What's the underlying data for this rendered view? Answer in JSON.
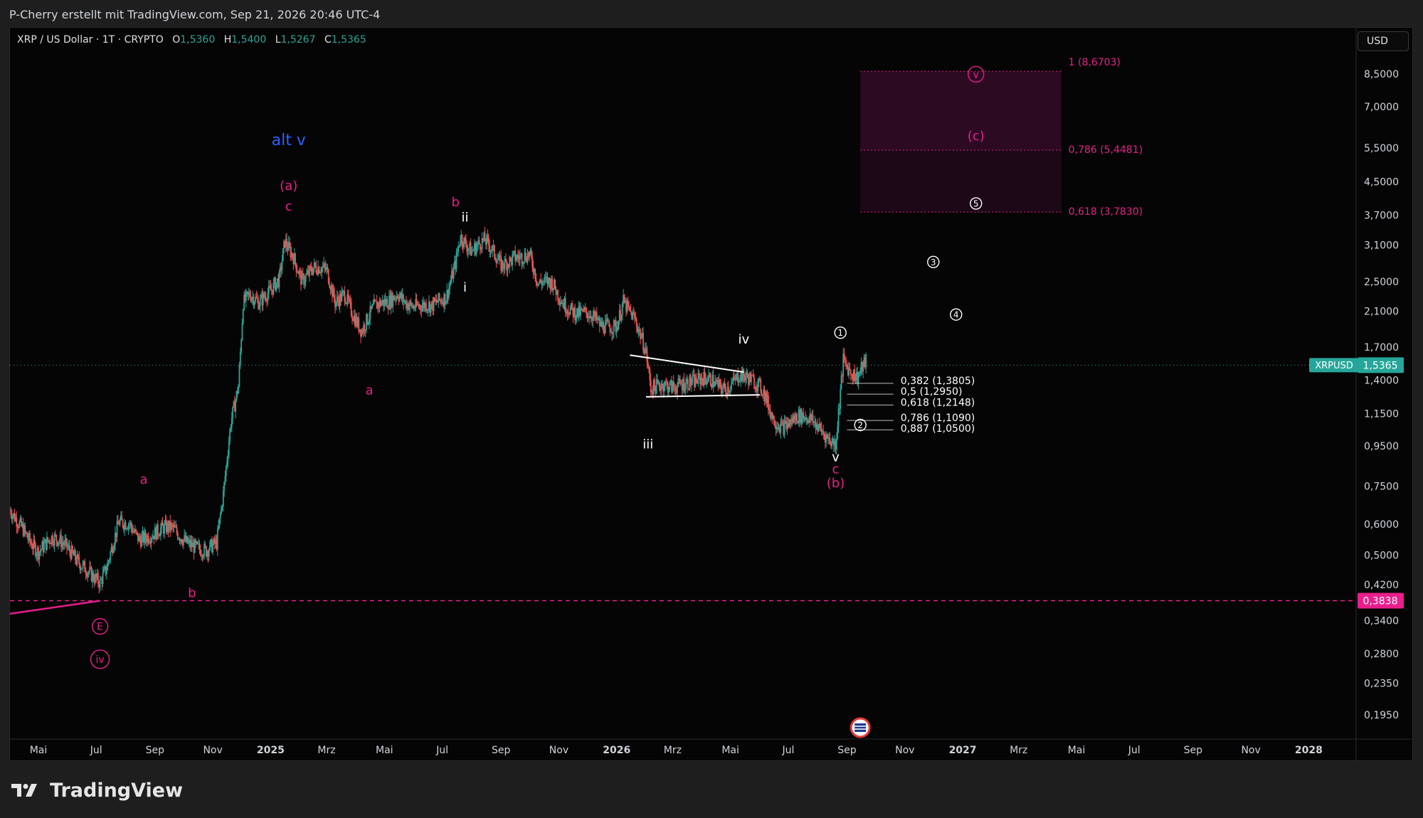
{
  "header": {
    "attribution": "P-Cherry erstellt mit TradingView.com, Sep 21, 2026 20:46 UTC-4"
  },
  "symbol": {
    "name": "XRP / US Dollar · 1T · CRYPTO",
    "o_label": "O",
    "o": "1,5360",
    "h_label": "H",
    "h": "1,5400",
    "l_label": "L",
    "l": "1,5267",
    "c_label": "C",
    "c": "1,5365"
  },
  "currency_button": "USD",
  "footer": {
    "brand": "TradingView"
  },
  "colors": {
    "up": "#26a69a",
    "down": "#ef5350",
    "magenta": "#e91e8c",
    "white": "#ffffff",
    "blue": "#2962ff",
    "zone": "#3a0a2c"
  },
  "chart_data": {
    "type": "candlestick",
    "y_scale": "log",
    "ylim": [
      0.17,
      11.2
    ],
    "x_ticks": [
      "Mai",
      "Jul",
      "Sep",
      "Nov",
      "2025",
      "Mrz",
      "Mai",
      "Jul",
      "Sep",
      "Nov",
      "2026",
      "Mrz",
      "Mai",
      "Jul",
      "Sep",
      "Nov",
      "2027",
      "Mrz",
      "Mai",
      "Jul",
      "Sep",
      "Nov",
      "2028"
    ],
    "y_ticks": [
      "8,5000",
      "7,0000",
      "5,5000",
      "4,5000",
      "3,7000",
      "3,1000",
      "2,5000",
      "2,1000",
      "1,7000",
      "1,4000",
      "1,1500",
      "0,9500",
      "0,7500",
      "0,6000",
      "0,5000",
      "0,4200",
      "0,3400",
      "0,2800",
      "0,2350",
      "0,1950"
    ],
    "y_tick_values": [
      8.5,
      7.0,
      5.5,
      4.5,
      3.7,
      3.1,
      2.5,
      2.1,
      1.7,
      1.4,
      1.15,
      0.95,
      0.75,
      0.6,
      0.5,
      0.42,
      0.34,
      0.28,
      0.235,
      0.195
    ],
    "current_price": {
      "symbol": "XRPUSD",
      "value": "1,5365",
      "price": 1.5365
    },
    "support_level": {
      "value": "0,3838",
      "price": 0.3838
    },
    "price_path": [
      [
        "2024-04-01",
        0.64
      ],
      [
        "2024-04-15",
        0.6
      ],
      [
        "2024-05-01",
        0.52
      ],
      [
        "2024-05-15",
        0.54
      ],
      [
        "2024-06-01",
        0.52
      ],
      [
        "2024-06-20",
        0.48
      ],
      [
        "2024-07-05",
        0.42
      ],
      [
        "2024-07-12",
        0.45
      ],
      [
        "2024-07-25",
        0.6
      ],
      [
        "2024-08-05",
        0.62
      ],
      [
        "2024-08-15",
        0.57
      ],
      [
        "2024-09-01",
        0.56
      ],
      [
        "2024-09-20",
        0.58
      ],
      [
        "2024-10-10",
        0.55
      ],
      [
        "2024-10-25",
        0.51
      ],
      [
        "2024-11-05",
        0.52
      ],
      [
        "2024-11-12",
        0.7
      ],
      [
        "2024-11-20",
        1.1
      ],
      [
        "2024-11-28",
        1.4
      ],
      [
        "2024-12-03",
        2.3
      ],
      [
        "2024-12-10",
        2.4
      ],
      [
        "2024-12-20",
        2.2
      ],
      [
        "2025-01-01",
        2.3
      ],
      [
        "2025-01-10",
        2.5
      ],
      [
        "2025-01-16",
        3.2
      ],
      [
        "2025-01-25",
        3.0
      ],
      [
        "2025-02-03",
        2.6
      ],
      [
        "2025-02-15",
        2.7
      ],
      [
        "2025-03-01",
        2.6
      ],
      [
        "2025-03-10",
        2.2
      ],
      [
        "2025-03-20",
        2.4
      ],
      [
        "2025-04-07",
        1.9
      ],
      [
        "2025-04-20",
        2.1
      ],
      [
        "2025-05-05",
        2.2
      ],
      [
        "2025-05-15",
        2.4
      ],
      [
        "2025-06-01",
        2.2
      ],
      [
        "2025-06-20",
        2.1
      ],
      [
        "2025-07-05",
        2.3
      ],
      [
        "2025-07-15",
        2.9
      ],
      [
        "2025-07-20",
        3.4
      ],
      [
        "2025-08-01",
        3.0
      ],
      [
        "2025-08-15",
        3.1
      ],
      [
        "2025-09-01",
        2.8
      ],
      [
        "2025-09-15",
        3.0
      ],
      [
        "2025-10-01",
        2.9
      ],
      [
        "2025-10-10",
        2.4
      ],
      [
        "2025-10-25",
        2.5
      ],
      [
        "2025-11-05",
        2.3
      ],
      [
        "2025-11-20",
        2.1
      ],
      [
        "2025-12-05",
        2.0
      ],
      [
        "2025-12-15",
        1.9
      ],
      [
        "2026-01-01",
        2.0
      ],
      [
        "2026-01-08",
        2.3
      ],
      [
        "2026-01-20",
        2.0
      ],
      [
        "2026-02-01",
        1.6
      ],
      [
        "2026-02-06",
        1.3
      ],
      [
        "2026-02-20",
        1.4
      ],
      [
        "2026-03-10",
        1.4
      ],
      [
        "2026-03-25",
        1.35
      ],
      [
        "2026-04-10",
        1.4
      ],
      [
        "2026-04-25",
        1.38
      ],
      [
        "2026-05-10",
        1.45
      ],
      [
        "2026-05-25",
        1.35
      ],
      [
        "2026-06-05",
        1.3
      ],
      [
        "2026-06-15",
        1.15
      ],
      [
        "2026-06-25",
        1.1
      ],
      [
        "2026-07-10",
        1.12
      ],
      [
        "2026-07-25",
        1.08
      ],
      [
        "2026-08-05",
        1.05
      ],
      [
        "2026-08-20",
        1.0
      ],
      [
        "2026-08-25",
        1.35
      ],
      [
        "2026-08-28",
        1.6
      ],
      [
        "2026-09-05",
        1.45
      ],
      [
        "2026-09-12",
        1.38
      ],
      [
        "2026-09-21",
        1.5365
      ]
    ],
    "wave_labels": [
      {
        "text": "alt v",
        "date": "2025-01-20",
        "price": 5.75,
        "color": "blue",
        "size": 22
      },
      {
        "text": "(a)",
        "date": "2025-01-20",
        "price": 4.4,
        "color": "magenta",
        "size": 18
      },
      {
        "text": "c",
        "date": "2025-01-20",
        "price": 3.9,
        "color": "magenta",
        "size": 18
      },
      {
        "text": "a",
        "date": "2024-08-20",
        "price": 0.78,
        "color": "magenta",
        "size": 18
      },
      {
        "text": "b",
        "date": "2024-10-10",
        "price": 0.4,
        "color": "magenta",
        "size": 18
      },
      {
        "text": "a",
        "date": "2025-04-15",
        "price": 1.32,
        "color": "magenta",
        "size": 18
      },
      {
        "text": "b",
        "date": "2025-07-15",
        "price": 4.0,
        "color": "magenta",
        "size": 18
      },
      {
        "text": "ii",
        "date": "2025-07-25",
        "price": 3.65,
        "color": "white",
        "size": 18
      },
      {
        "text": "i",
        "date": "2025-07-25",
        "price": 2.42,
        "color": "white",
        "size": 18
      },
      {
        "text": "iii",
        "date": "2026-02-03",
        "price": 0.96,
        "color": "white",
        "size": 18
      },
      {
        "text": "iv",
        "date": "2026-05-15",
        "price": 1.78,
        "color": "white",
        "size": 18
      },
      {
        "text": "v",
        "date": "2026-08-20",
        "price": 0.89,
        "color": "white",
        "size": 18
      },
      {
        "text": "c",
        "date": "2026-08-20",
        "price": 0.83,
        "color": "magenta",
        "size": 18
      },
      {
        "text": "(b)",
        "date": "2026-08-20",
        "price": 0.765,
        "color": "magenta",
        "size": 18
      },
      {
        "text": "(c)",
        "date": "2027-01-15",
        "price": 5.9,
        "color": "magenta",
        "size": 18
      }
    ],
    "circled_labels": [
      {
        "text": "1",
        "date": "2026-08-25",
        "price": 1.86,
        "color": "white"
      },
      {
        "text": "2",
        "date": "2026-09-15",
        "price": 1.08,
        "color": "white"
      },
      {
        "text": "3",
        "date": "2026-12-01",
        "price": 2.82,
        "color": "white"
      },
      {
        "text": "4",
        "date": "2026-12-25",
        "price": 2.07,
        "color": "white"
      },
      {
        "text": "5",
        "date": "2027-01-15",
        "price": 3.98,
        "color": "white"
      },
      {
        "text": "v",
        "date": "2027-01-15",
        "price": 8.52,
        "color": "magenta"
      },
      {
        "text": "E",
        "date": "2024-07-05",
        "price": 0.33,
        "color": "magenta"
      },
      {
        "text": "iv",
        "date": "2024-07-05",
        "price": 0.272,
        "color": "magenta"
      }
    ],
    "fib_retracement": [
      {
        "label": "0,382 (1,3805)",
        "price": 1.3805
      },
      {
        "label": "0,5 (1,2950)",
        "price": 1.295
      },
      {
        "label": "0,618 (1,2148)",
        "price": 1.2148
      },
      {
        "label": "0,786 (1,1090)",
        "price": 1.109
      },
      {
        "label": "0,887 (1,0500)",
        "price": 1.05
      }
    ],
    "fib_extension": [
      {
        "label": "1 (8,6703)",
        "price": 8.6703
      },
      {
        "label": "0,786 (5,4481)",
        "price": 5.4481
      },
      {
        "label": "0,618 (3,7830)",
        "price": 3.783
      }
    ],
    "target_zone": {
      "date_start": "2026-09-15",
      "date_end": "2027-04-15",
      "price_top": 8.6703,
      "price_mid": 5.4481,
      "price_bottom": 3.783
    },
    "triangle": {
      "upper": [
        [
          "2026-01-15",
          1.63
        ],
        [
          "2026-05-15",
          1.475
        ]
      ],
      "lower": [
        [
          "2026-02-01",
          1.275
        ],
        [
          "2026-06-01",
          1.29
        ]
      ]
    },
    "trendline": [
      [
        "2024-03-20",
        0.352
      ],
      [
        "2024-07-05",
        0.3838
      ]
    ]
  }
}
